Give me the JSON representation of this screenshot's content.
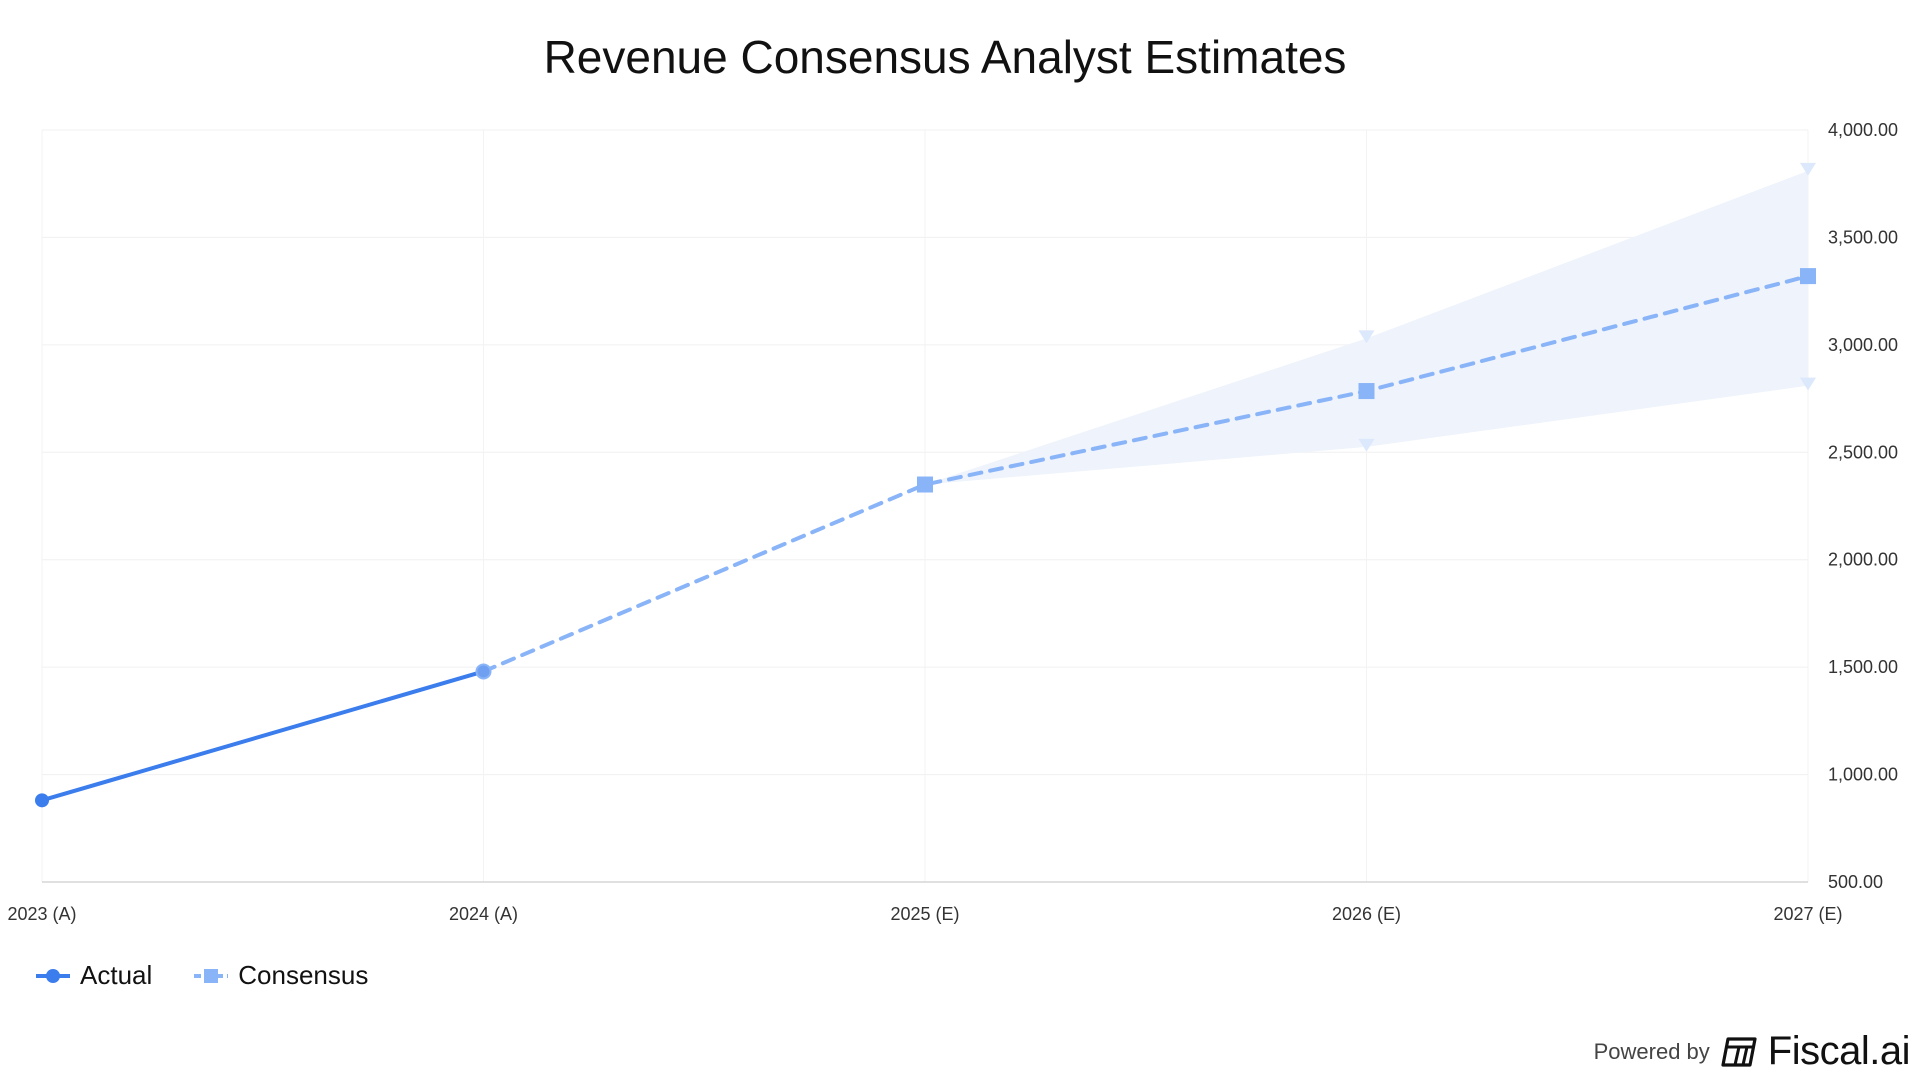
{
  "chart_data": {
    "type": "line",
    "title": "Revenue Consensus Analyst Estimates",
    "categories": [
      "2023 (A)",
      "2024 (A)",
      "2025 (E)",
      "2026 (E)",
      "2027 (E)"
    ],
    "series": [
      {
        "name": "Actual",
        "values": [
          880,
          1480,
          null,
          null,
          null
        ],
        "color": "#3b7ded",
        "marker": "circle",
        "line": "solid"
      },
      {
        "name": "Consensus",
        "values": [
          null,
          1480,
          2350,
          2785,
          3320
        ],
        "color": "#8ab4f8",
        "marker": "square",
        "line": "dashed"
      }
    ],
    "range": {
      "high": [
        null,
        null,
        2350,
        3030,
        3810
      ],
      "low": [
        null,
        null,
        2350,
        2525,
        2810
      ],
      "fill_color": "#eef3fc",
      "marker": "triangle-down"
    },
    "ylim": [
      500,
      4000
    ],
    "yticks": [
      "4,000.00",
      "3,500.00",
      "3,000.00",
      "2,500.00",
      "2,000.00",
      "1,500.00",
      "1,000.00",
      "500.00"
    ],
    "ytick_values": [
      4000,
      3500,
      3000,
      2500,
      2000,
      1500,
      1000,
      500
    ],
    "y_axis_side": "right",
    "grid": true,
    "legend_position": "bottom-left",
    "xlabel": "",
    "ylabel": ""
  },
  "branding": {
    "powered_by": "Powered by",
    "brand_name": "Fiscal.ai"
  }
}
